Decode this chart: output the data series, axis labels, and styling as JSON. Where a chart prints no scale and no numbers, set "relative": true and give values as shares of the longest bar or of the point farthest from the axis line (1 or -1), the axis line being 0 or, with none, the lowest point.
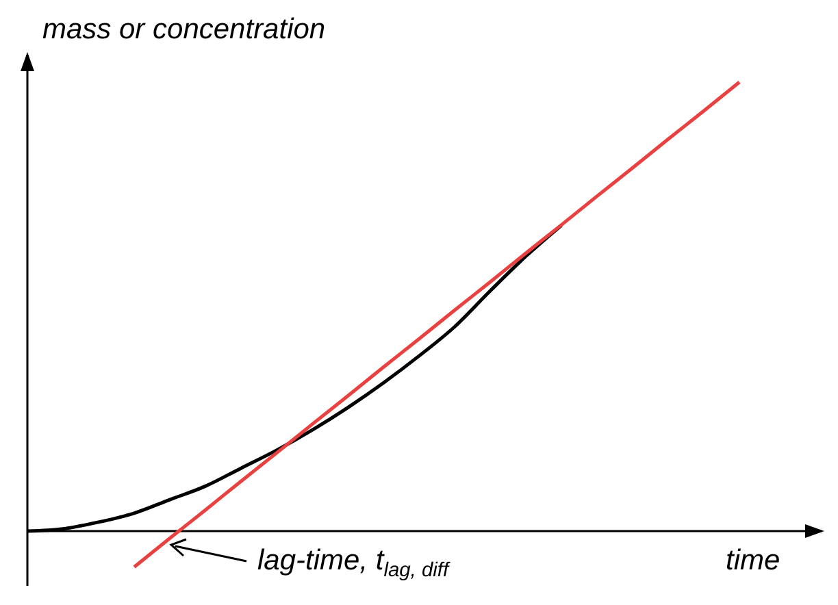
{
  "chart_data": {
    "type": "line",
    "relative": true,
    "xlabel": "time",
    "ylabel": "mass or concentration",
    "categories": [
      null,
      null,
      null,
      null,
      null,
      null,
      null,
      null,
      null,
      null,
      null,
      null,
      null,
      null,
      null,
      null,
      null,
      null,
      null,
      null,
      null
    ],
    "series": [
      {
        "color": "#000000",
        "values": [
          0,
          0.005,
          0.02,
          0.04,
          0.07,
          0.1,
          0.14,
          0.18,
          0.225,
          0.275,
          0.33,
          0.39,
          0.455,
          0.535,
          0.612,
          0.681,
          null,
          null,
          null,
          null,
          null
        ]
      },
      {
        "color": "#e8413f",
        "values": [
          null,
          null,
          null,
          -0.08,
          -0.016,
          0.047,
          0.111,
          0.174,
          0.238,
          0.301,
          0.365,
          0.428,
          0.492,
          0.555,
          0.619,
          0.682,
          0.746,
          0.809,
          0.873,
          0.936,
          1
        ]
      }
    ],
    "annotations": [
      "lag-time, t$_{lag, diff}$"
    ],
    "grid": false,
    "legend": false,
    "marker": "none",
    "line_style": "solid"
  }
}
